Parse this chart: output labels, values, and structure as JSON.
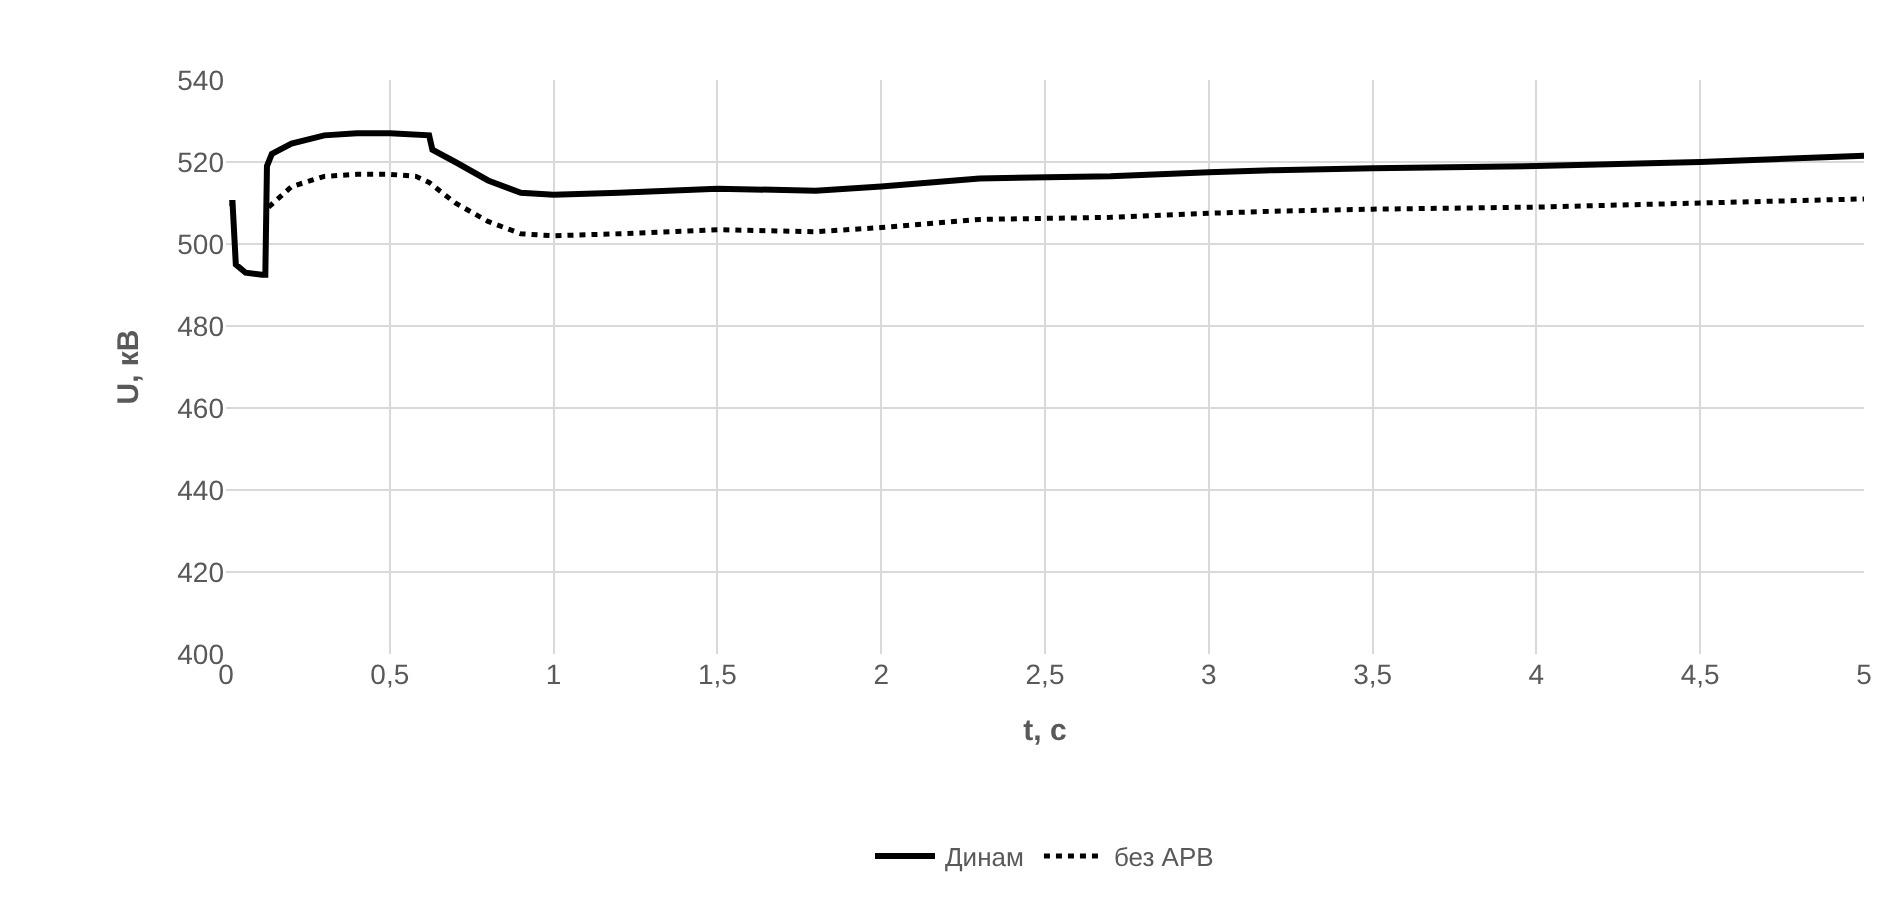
{
  "chart_data": {
    "type": "line",
    "xlabel": "t, с",
    "ylabel": "U, кВ",
    "xlim": [
      0,
      5
    ],
    "xticks": [
      0,
      {
        "value": 0.5,
        "label": "0,5"
      },
      1,
      {
        "value": 1.5,
        "label": "1,5"
      },
      2,
      {
        "value": 2.5,
        "label": "2,5"
      },
      3,
      {
        "value": 3.5,
        "label": "3,5"
      },
      4,
      {
        "value": 4.5,
        "label": "4,5"
      },
      5
    ],
    "ylim": [
      400,
      540
    ],
    "yticks": [
      400,
      420,
      440,
      460,
      480,
      500,
      520,
      540
    ],
    "grid": true,
    "legend": "bottom",
    "series": [
      {
        "name": "Динам",
        "color": "#000000",
        "line_style": "solid",
        "x": [
          0.01,
          0.02,
          0.03,
          0.06,
          0.11,
          0.12,
          0.125,
          0.14,
          0.2,
          0.3,
          0.4,
          0.5,
          0.62,
          0.63,
          0.7,
          0.8,
          0.9,
          1.0,
          1.2,
          1.5,
          1.8,
          2.0,
          2.3,
          2.7,
          3.0,
          3.2,
          3.5,
          4.0,
          4.5,
          5.0
        ],
        "values": [
          510,
          510,
          495,
          493,
          492.5,
          492.5,
          519,
          522,
          524.5,
          526.5,
          527,
          527,
          526.5,
          523,
          520,
          515.5,
          512.5,
          512,
          512.5,
          513.5,
          513,
          514,
          516,
          516.5,
          517.5,
          518,
          518.5,
          519,
          520,
          521.5
        ]
      },
      {
        "name": "без АРВ",
        "color": "#000000",
        "line_style": "dotted",
        "x": [
          0.13,
          0.2,
          0.3,
          0.4,
          0.5,
          0.58,
          0.62,
          0.7,
          0.8,
          0.9,
          1.0,
          1.2,
          1.5,
          1.8,
          2.0,
          2.3,
          2.7,
          3.0,
          3.2,
          3.5,
          4.0,
          4.5,
          5.0
        ],
        "values": [
          509,
          514,
          516.5,
          517,
          517,
          516.5,
          515,
          510,
          505.5,
          502.5,
          502,
          502.5,
          503.5,
          503,
          504,
          506,
          506.5,
          507.5,
          508,
          508.5,
          509,
          510,
          511
        ]
      }
    ]
  }
}
